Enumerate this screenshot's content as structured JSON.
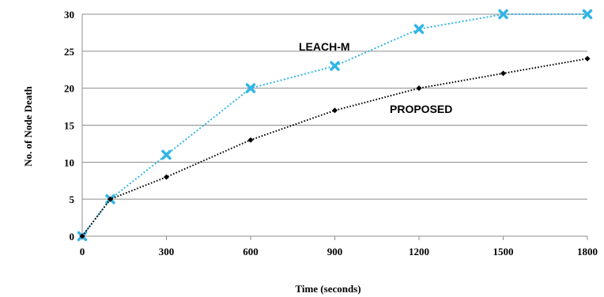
{
  "chart_data": {
    "type": "line",
    "title": "",
    "xlabel": "Time (seconds)",
    "ylabel": "No. of Node Death",
    "xlim": [
      0,
      1800
    ],
    "ylim": [
      0,
      30
    ],
    "x_ticks": [
      0,
      300,
      600,
      900,
      1200,
      1500,
      1800
    ],
    "y_ticks": [
      0,
      5,
      10,
      15,
      20,
      25,
      30
    ],
    "grid": "horizontal",
    "legend": "none",
    "series": [
      {
        "name": "LEACH-M",
        "color": "#33b5e5",
        "marker": "x",
        "line_style": "dotted",
        "x": [
          0,
          100,
          300,
          600,
          900,
          1200,
          1500,
          1800
        ],
        "values": [
          0,
          5,
          11,
          20,
          23,
          28,
          30,
          30
        ]
      },
      {
        "name": "PROPOSED",
        "color": "#000000",
        "marker": "diamond",
        "line_style": "dotted",
        "x": [
          0,
          100,
          300,
          600,
          900,
          1200,
          1500,
          1800
        ],
        "values": [
          0,
          5,
          8,
          13,
          17,
          20,
          22,
          24
        ]
      }
    ]
  }
}
